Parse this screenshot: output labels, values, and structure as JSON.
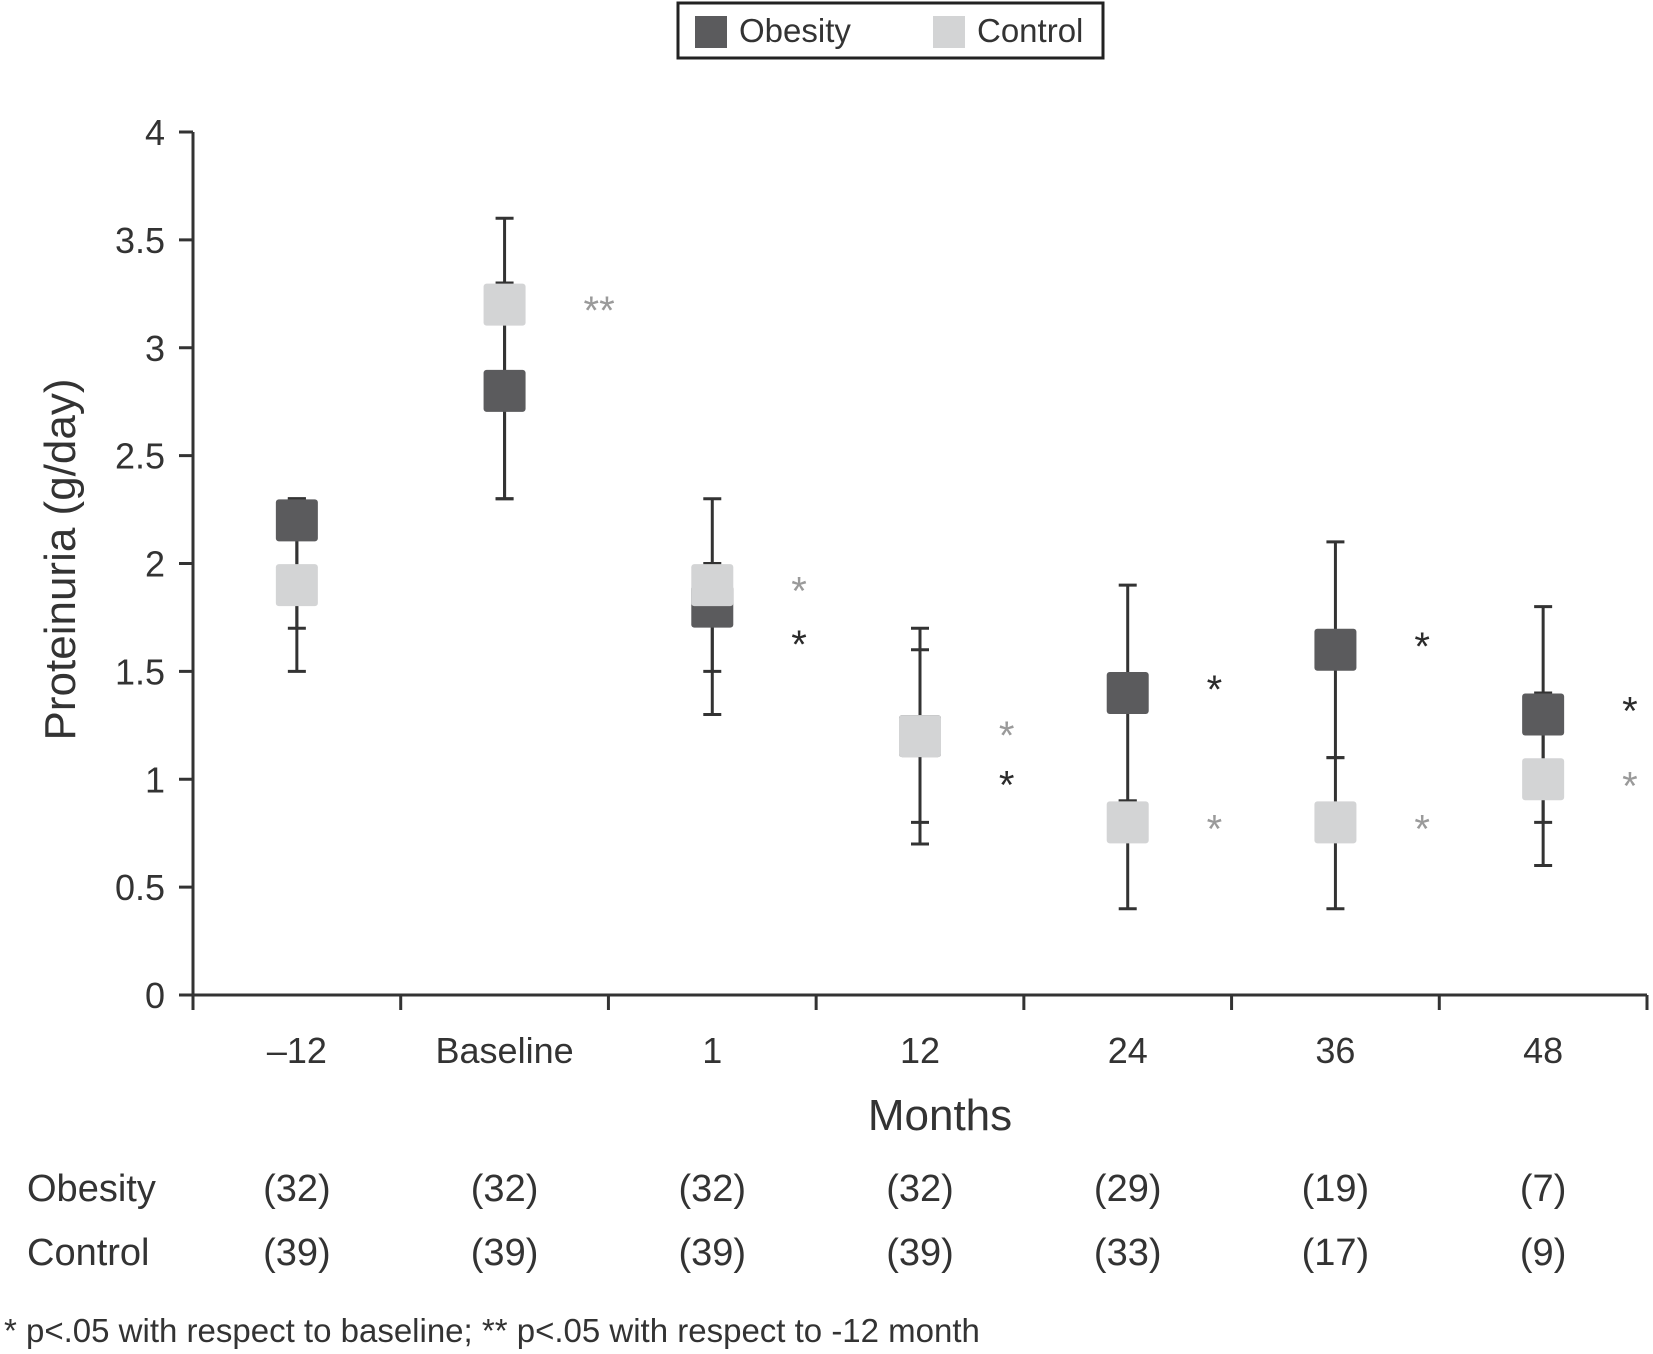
{
  "chart_data": {
    "type": "scatter",
    "categories": [
      "–12",
      "Baseline",
      "1",
      "12",
      "24",
      "36",
      "48"
    ],
    "xlabel": "Months",
    "ylabel": "Proteinuria (g/day)",
    "ylim": [
      0,
      4
    ],
    "yticks": [
      "0",
      "0.5",
      "1",
      "1.5",
      "2",
      "2.5",
      "3",
      "3.5",
      "4"
    ],
    "grid": false,
    "legend_position": "top-center",
    "series": [
      {
        "name": "Obesity",
        "color": "#5b5b5d",
        "values": [
          2.2,
          2.8,
          1.8,
          1.2,
          1.4,
          1.6,
          1.3
        ],
        "err_low": [
          1.5,
          2.3,
          1.3,
          0.7,
          0.4,
          0.4,
          0.6
        ],
        "err_high": [
          2.3,
          3.6,
          2.3,
          1.7,
          1.9,
          2.1,
          1.8
        ],
        "significance": [
          "",
          "",
          "*",
          "*",
          "*",
          "*",
          "*"
        ],
        "n": [
          "(32)",
          "(32)",
          "(32)",
          "(32)",
          "(29)",
          "(19)",
          "(7)"
        ]
      },
      {
        "name": "Control",
        "color": "#d3d4d5",
        "values": [
          1.9,
          3.2,
          1.9,
          1.2,
          0.8,
          0.8,
          1.0
        ],
        "err_low": [
          1.7,
          2.3,
          1.5,
          0.8,
          0.9,
          1.1,
          0.8
        ],
        "err_high": [
          2.3,
          3.3,
          2.0,
          1.6,
          0.9,
          1.1,
          1.4
        ],
        "significance": [
          "",
          "**",
          "*",
          "*",
          "*",
          "*",
          "*"
        ],
        "n": [
          "(39)",
          "(39)",
          "(39)",
          "(39)",
          "(33)",
          "(17)",
          "(9)"
        ]
      }
    ],
    "sig_colors": {
      "Obesity": "#2b2b2b",
      "Control": "#9a9a9a"
    },
    "footnote": "* p<.05 with respect to baseline; ** p<.05 with respect to -12 month"
  }
}
